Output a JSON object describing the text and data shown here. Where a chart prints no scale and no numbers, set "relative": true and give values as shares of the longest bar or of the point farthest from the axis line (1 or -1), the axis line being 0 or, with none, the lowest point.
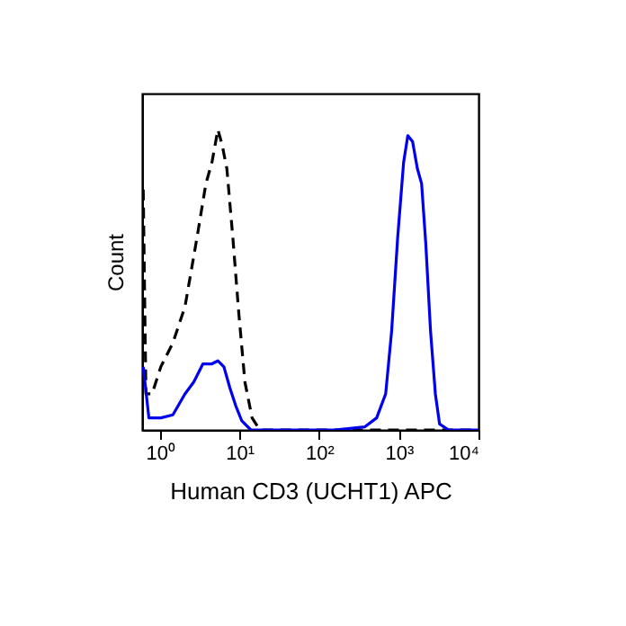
{
  "chart_data": {
    "type": "line",
    "xlabel": "Human CD3 (UCHT1) APC",
    "ylabel": "Count",
    "relative": true,
    "log": "x",
    "xlim": [
      0.6,
      10000
    ],
    "xticks": [
      {
        "value": 1,
        "label": "10⁰"
      },
      {
        "value": 10,
        "label": "10¹"
      },
      {
        "value": 100,
        "label": "10²"
      },
      {
        "value": 1000,
        "label": "10³"
      },
      {
        "value": 10000,
        "label": "10⁴"
      }
    ],
    "grid": false,
    "marker": "none",
    "series": [
      {
        "color": "#000000",
        "line_style": "dashed",
        "x": [
          0.62,
          0.67,
          0.8,
          1.03,
          1.46,
          2.07,
          2.93,
          3.79,
          4.51,
          5.36,
          6.05,
          6.95,
          8.26,
          9.8,
          11.7,
          14.4,
          18,
          10000
        ],
        "values": [
          0.8,
          0.12,
          0.12,
          0.21,
          0.29,
          0.41,
          0.64,
          0.82,
          0.89,
          1,
          0.95,
          0.87,
          0.64,
          0.39,
          0.16,
          0.04,
          0,
          0
        ]
      },
      {
        "color": "#0000ee",
        "line_style": "solid",
        "x": [
          0.62,
          0.73,
          1.03,
          1.46,
          2.07,
          2.68,
          3.48,
          4.51,
          5.36,
          6.38,
          7.58,
          9.0,
          10.7,
          13.9,
          157,
          372,
          527,
          684,
          813,
          967,
          1148,
          1297,
          1489,
          1710,
          1932,
          2180,
          2500,
          2875,
          3245,
          4210,
          10000
        ],
        "values": [
          0.21,
          0.04,
          0.04,
          0.05,
          0.12,
          0.16,
          0.22,
          0.22,
          0.23,
          0.21,
          0.14,
          0.08,
          0.03,
          0,
          0,
          0.01,
          0.04,
          0.12,
          0.33,
          0.64,
          0.89,
          0.98,
          0.96,
          0.87,
          0.82,
          0.62,
          0.33,
          0.12,
          0.02,
          0,
          0
        ]
      }
    ]
  }
}
